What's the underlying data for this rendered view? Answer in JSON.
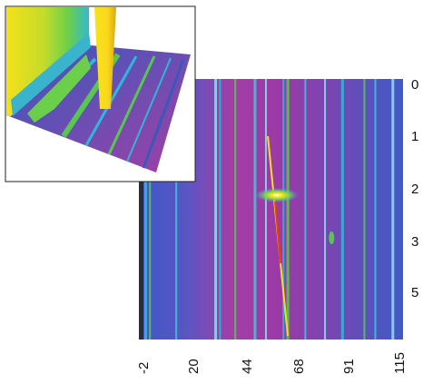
{
  "chart_data": [
    {
      "type": "heatmap",
      "title": "",
      "xlabel": "",
      "ylabel": "",
      "x_ticks": [
        "-2",
        "20",
        "44",
        "68",
        "91",
        "115"
      ],
      "y_ticks": [
        "0",
        "1",
        "2",
        "3",
        "5"
      ],
      "x_range": [
        -2,
        115
      ],
      "colormap": [
        "#3b4fb3",
        "#2fb6d8",
        "#57c84d",
        "#f2e21b",
        "#e33d14",
        "#9a3aa6"
      ],
      "background_color": "#9a3aa6",
      "bright_lines_x": [
        -1,
        1,
        13,
        31,
        33,
        40,
        49,
        54,
        62,
        64,
        72,
        81,
        89,
        99,
        104,
        112
      ],
      "hotspot": {
        "x": 59,
        "y": 2.15
      },
      "minor_spot": {
        "x": 84,
        "y": 2.9
      }
    },
    {
      "type": "surface",
      "title": "",
      "description_values": {
        "colormap": [
          "#3b4fb3",
          "#2fb6d8",
          "#57c84d",
          "#f2e21b"
        ]
      }
    }
  ]
}
